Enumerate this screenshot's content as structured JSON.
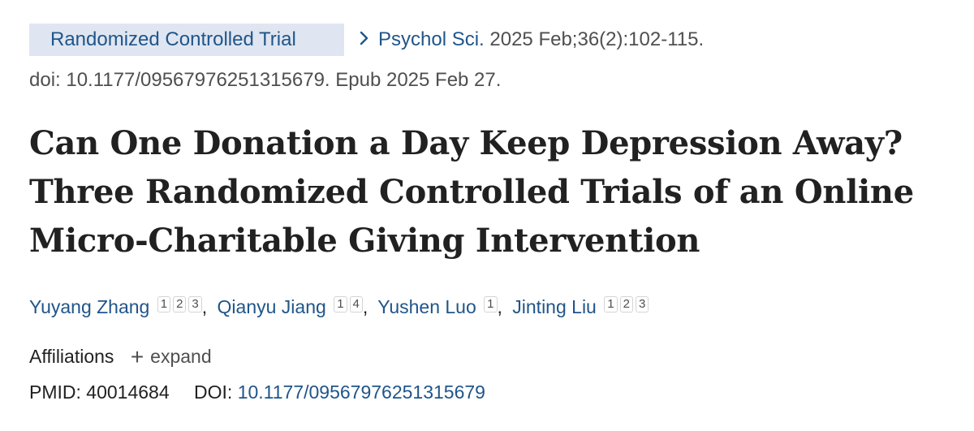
{
  "header": {
    "publication_type": "Randomized Controlled Trial",
    "journal": "Psychol Sci.",
    "citation": "2025 Feb;36(2):102-115.",
    "doi_line": "doi: 10.1177/09567976251315679. Epub 2025 Feb 27."
  },
  "title": "Can One Donation a Day Keep Depression Away? Three Randomized Controlled Trials of an Online Micro-Charitable Giving Intervention",
  "authors": [
    {
      "name": "Yuyang Zhang",
      "affiliations": [
        "1",
        "2",
        "3"
      ]
    },
    {
      "name": "Qianyu Jiang",
      "affiliations": [
        "1",
        "4"
      ]
    },
    {
      "name": "Yushen Luo",
      "affiliations": [
        "1"
      ]
    },
    {
      "name": "Jinting Liu",
      "affiliations": [
        "1",
        "2",
        "3"
      ]
    }
  ],
  "affiliations": {
    "label": "Affiliations",
    "expand_label": "expand"
  },
  "identifiers": {
    "pmid_label": "PMID:",
    "pmid": "40014684",
    "doi_label": "DOI:",
    "doi": "10.1177/09567976251315679"
  },
  "colors": {
    "link": "#20558a",
    "pubtype_bg": "#dfe6f1",
    "text": "#212121",
    "muted": "#4f4f4f"
  },
  "icons": {
    "citation": "chevron-right-icon",
    "expand": "plus-icon"
  }
}
